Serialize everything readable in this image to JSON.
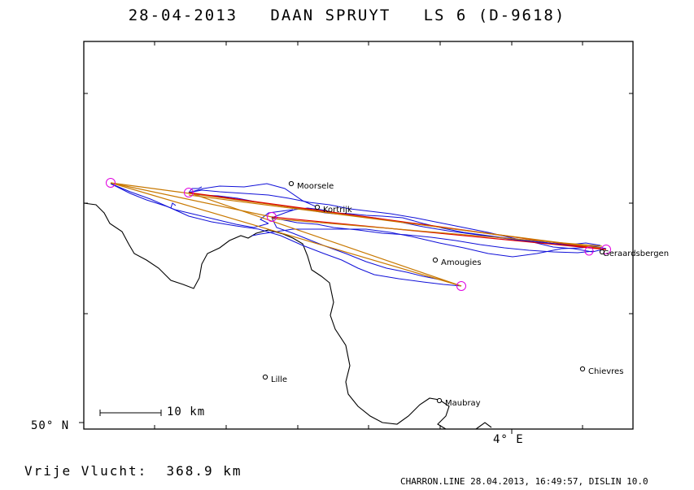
{
  "title": "28-04-2013   DAAN SPRUYT   LS 6 (D-9618)",
  "scale_label": "10 km",
  "lat_label": "50° N",
  "lon_label": "4° E",
  "distance": "Vrije Vlucht:  368.9 km",
  "footer": "CHARRON.LINE 28.04.2013, 16:49:57, DISLIN 10.0",
  "places": [
    {
      "name": "Moorsele"
    },
    {
      "name": "Kortrijk"
    },
    {
      "name": "Amougies"
    },
    {
      "name": "Geraardsbergen"
    },
    {
      "name": "Lille"
    },
    {
      "name": "Chievres"
    },
    {
      "name": "Maubray"
    }
  ],
  "colors": {
    "track": "#1010d8",
    "task": "#c87800",
    "task_red": "#e00000",
    "turnpoint": "#e000e0",
    "border": "#000000"
  }
}
